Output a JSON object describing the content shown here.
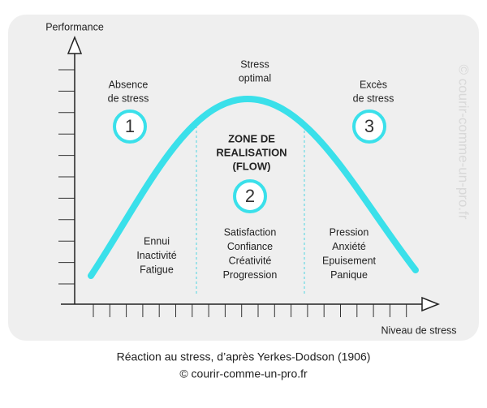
{
  "axes": {
    "y_label": "Performance",
    "x_label": "Niveau de stress"
  },
  "peak_label": [
    "Stress",
    "optimal"
  ],
  "zones": [
    {
      "number": "1",
      "label": [
        "Absence",
        "de stress"
      ],
      "states": [
        "Ennui",
        "Inactivité",
        "Fatigue"
      ]
    },
    {
      "number": "2",
      "title": [
        "ZONE DE",
        "REALISATION",
        "(FLOW)"
      ],
      "states": [
        "Satisfaction",
        "Confiance",
        "Créativité",
        "Progression"
      ]
    },
    {
      "number": "3",
      "label": [
        "Excès",
        "de stress"
      ],
      "states": [
        "Pression",
        "Anxiété",
        "Epuisement",
        "Panique"
      ]
    }
  ],
  "watermark": "© courir-comme-un-pro.fr",
  "caption": [
    "Réaction au stress, d’après Yerkes-Dodson (1906)",
    "© courir-comme-un-pro.fr"
  ]
}
